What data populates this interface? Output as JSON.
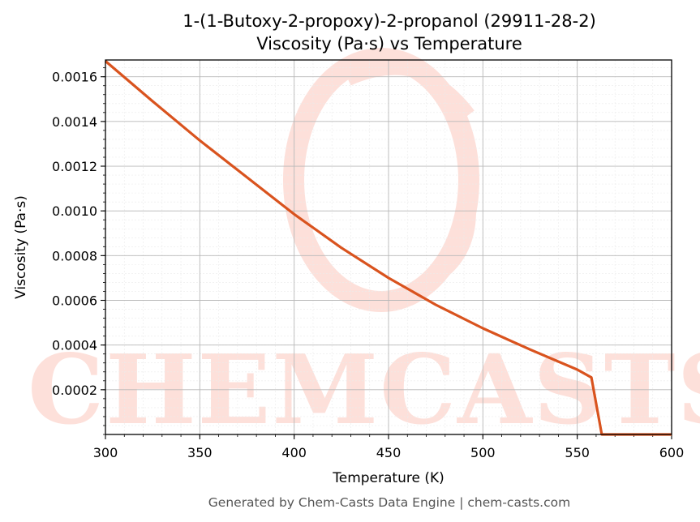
{
  "chart_data": {
    "type": "line",
    "title": "1-(1-Butoxy-2-propoxy)-2-propanol (29911-28-2)",
    "subtitle": "Viscosity (Pa·s) vs Temperature",
    "xlabel": "Temperature (K)",
    "ylabel": "Viscosity (Pa·s)",
    "xlim": [
      300,
      600
    ],
    "ylim": [
      0.0,
      0.001675
    ],
    "xticks": [
      "300",
      "350",
      "400",
      "450",
      "500",
      "550",
      "600"
    ],
    "yticks": [
      "0.0002",
      "0.0004",
      "0.0006",
      "0.0008",
      "0.0010",
      "0.0012",
      "0.0014",
      "0.0016"
    ],
    "grid": true,
    "series_color": "#d9531e",
    "x": [
      300,
      325,
      350,
      375,
      400,
      425,
      450,
      475,
      500,
      525,
      550,
      557.5,
      563,
      600
    ],
    "y": [
      0.00167,
      0.00149,
      0.001315,
      0.00115,
      0.000985,
      0.000835,
      0.0007,
      0.00058,
      0.000475,
      0.00038,
      0.00029,
      0.000255,
      0.0,
      0.0
    ]
  },
  "watermark": {
    "text": "CHEMCASTS",
    "color": "#fde0da"
  },
  "footer": "Generated by Chem-Casts Data Engine | chem-casts.com"
}
